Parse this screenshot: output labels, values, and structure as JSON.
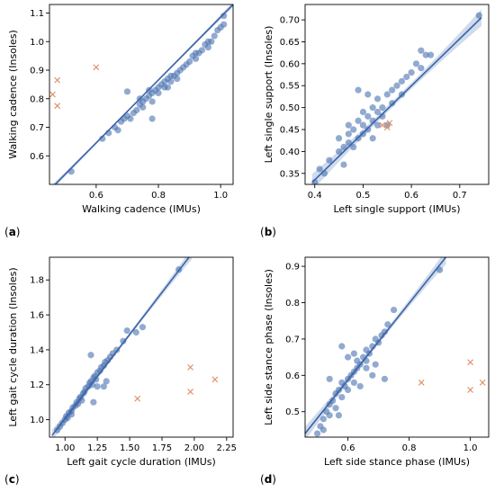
{
  "colors": {
    "points": "#4a71b0",
    "outliers": "#e08a60",
    "fit_line": "#3a64a8",
    "confidence_band": "#a9bddd"
  },
  "chart_data": [
    {
      "type": "scatter",
      "panel_label": "(a)",
      "xlabel": "Walking cadence (IMUs)",
      "ylabel": "Walking cadence (Insoles)",
      "xlim": [
        0.45,
        1.04
      ],
      "ylim": [
        0.5,
        1.13
      ],
      "xticks": [
        "0.6",
        "0.8",
        "1.0"
      ],
      "xtick_values": [
        0.6,
        0.8,
        1.0
      ],
      "yticks": [
        "0.6",
        "0.7",
        "0.8",
        "0.9",
        "1.0",
        "1.1"
      ],
      "ytick_values": [
        0.6,
        0.7,
        0.8,
        0.9,
        1.0,
        1.1
      ],
      "grid": false,
      "fit_line": {
        "x": [
          0.45,
          1.04
        ],
        "y": [
          0.48,
          1.13
        ]
      },
      "band_halfwidth": 0.006,
      "points": [
        [
          0.52,
          0.545
        ],
        [
          0.62,
          0.66
        ],
        [
          0.64,
          0.68
        ],
        [
          0.66,
          0.7
        ],
        [
          0.67,
          0.69
        ],
        [
          0.68,
          0.72
        ],
        [
          0.69,
          0.73
        ],
        [
          0.7,
          0.74
        ],
        [
          0.71,
          0.73
        ],
        [
          0.72,
          0.75
        ],
        [
          0.73,
          0.76
        ],
        [
          0.74,
          0.78
        ],
        [
          0.74,
          0.8
        ],
        [
          0.75,
          0.79
        ],
        [
          0.76,
          0.8
        ],
        [
          0.77,
          0.81
        ],
        [
          0.77,
          0.83
        ],
        [
          0.78,
          0.82
        ],
        [
          0.78,
          0.79
        ],
        [
          0.79,
          0.83
        ],
        [
          0.8,
          0.84
        ],
        [
          0.8,
          0.82
        ],
        [
          0.81,
          0.85
        ],
        [
          0.82,
          0.86
        ],
        [
          0.82,
          0.84
        ],
        [
          0.83,
          0.87
        ],
        [
          0.84,
          0.86
        ],
        [
          0.84,
          0.88
        ],
        [
          0.85,
          0.88
        ],
        [
          0.86,
          0.89
        ],
        [
          0.86,
          0.87
        ],
        [
          0.87,
          0.9
        ],
        [
          0.88,
          0.91
        ],
        [
          0.89,
          0.92
        ],
        [
          0.9,
          0.93
        ],
        [
          0.91,
          0.95
        ],
        [
          0.92,
          0.94
        ],
        [
          0.93,
          0.96
        ],
        [
          0.94,
          0.97
        ],
        [
          0.95,
          0.99
        ],
        [
          0.96,
          1.0
        ],
        [
          0.97,
          1.0
        ],
        [
          0.98,
          1.02
        ],
        [
          0.99,
          1.04
        ],
        [
          1.0,
          1.05
        ],
        [
          1.01,
          1.06
        ],
        [
          1.01,
          1.09
        ],
        [
          0.7,
          0.825
        ],
        [
          0.78,
          0.73
        ],
        [
          0.75,
          0.77
        ],
        [
          0.83,
          0.84
        ],
        [
          0.92,
          0.96
        ],
        [
          0.96,
          0.98
        ]
      ],
      "outliers": [
        [
          0.46,
          0.815
        ],
        [
          0.475,
          0.865
        ],
        [
          0.475,
          0.775
        ],
        [
          0.6,
          0.91
        ]
      ]
    },
    {
      "type": "scatter",
      "panel_label": "(b)",
      "xlabel": "Left single support (IMUs)",
      "ylabel": "Left single support (Insoles)",
      "xlim": [
        0.38,
        0.76
      ],
      "ylim": [
        0.325,
        0.735
      ],
      "xticks": [
        "0.4",
        "0.5",
        "0.6",
        "0.7"
      ],
      "xtick_values": [
        0.4,
        0.5,
        0.6,
        0.7
      ],
      "yticks": [
        "0.35",
        "0.40",
        "0.45",
        "0.50",
        "0.55",
        "0.60",
        "0.65",
        "0.70"
      ],
      "ytick_values": [
        0.35,
        0.4,
        0.45,
        0.5,
        0.55,
        0.6,
        0.65,
        0.7
      ],
      "grid": false,
      "fit_line": {
        "x": [
          0.395,
          0.745
        ],
        "y": [
          0.33,
          0.705
        ]
      },
      "band_halfwidth": 0.012,
      "points": [
        [
          0.4,
          0.33
        ],
        [
          0.41,
          0.36
        ],
        [
          0.42,
          0.35
        ],
        [
          0.43,
          0.38
        ],
        [
          0.45,
          0.4
        ],
        [
          0.46,
          0.41
        ],
        [
          0.46,
          0.37
        ],
        [
          0.47,
          0.42
        ],
        [
          0.47,
          0.44
        ],
        [
          0.48,
          0.41
        ],
        [
          0.48,
          0.45
        ],
        [
          0.49,
          0.43
        ],
        [
          0.49,
          0.47
        ],
        [
          0.5,
          0.46
        ],
        [
          0.5,
          0.44
        ],
        [
          0.5,
          0.49
        ],
        [
          0.51,
          0.48
        ],
        [
          0.51,
          0.45
        ],
        [
          0.52,
          0.47
        ],
        [
          0.52,
          0.5
        ],
        [
          0.52,
          0.43
        ],
        [
          0.53,
          0.49
        ],
        [
          0.53,
          0.52
        ],
        [
          0.54,
          0.5
        ],
        [
          0.54,
          0.48
        ],
        [
          0.55,
          0.53
        ],
        [
          0.55,
          0.46
        ],
        [
          0.56,
          0.54
        ],
        [
          0.56,
          0.51
        ],
        [
          0.57,
          0.55
        ],
        [
          0.58,
          0.56
        ],
        [
          0.58,
          0.53
        ],
        [
          0.59,
          0.57
        ],
        [
          0.6,
          0.58
        ],
        [
          0.61,
          0.6
        ],
        [
          0.62,
          0.59
        ],
        [
          0.62,
          0.63
        ],
        [
          0.63,
          0.62
        ],
        [
          0.64,
          0.62
        ],
        [
          0.74,
          0.71
        ],
        [
          0.49,
          0.54
        ],
        [
          0.47,
          0.46
        ],
        [
          0.45,
          0.43
        ],
        [
          0.53,
          0.46
        ],
        [
          0.51,
          0.53
        ]
      ],
      "outliers": [
        [
          0.54,
          0.46
        ],
        [
          0.55,
          0.455
        ],
        [
          0.555,
          0.465
        ]
      ]
    },
    {
      "type": "scatter",
      "panel_label": "(c)",
      "xlabel": "Left gait cycle duration (IMUs)",
      "ylabel": "Left gait cycle duration (Insoles)",
      "xlim": [
        0.88,
        2.3
      ],
      "ylim": [
        0.9,
        1.93
      ],
      "xticks": [
        "1.00",
        "1.25",
        "1.50",
        "1.75",
        "2.00",
        "2.25"
      ],
      "xtick_values": [
        1.0,
        1.25,
        1.5,
        1.75,
        2.0,
        2.25
      ],
      "yticks": [
        "1.0",
        "1.2",
        "1.4",
        "1.6",
        "1.8"
      ],
      "ytick_values": [
        1.0,
        1.2,
        1.4,
        1.6,
        1.8
      ],
      "grid": false,
      "fit_line": {
        "x": [
          0.9,
          1.98
        ],
        "y": [
          0.91,
          1.95
        ]
      },
      "band_halfwidth": 0.02,
      "points": [
        [
          0.94,
          0.94
        ],
        [
          0.96,
          0.96
        ],
        [
          0.98,
          0.98
        ],
        [
          1.0,
          1.0
        ],
        [
          1.01,
          1.02
        ],
        [
          1.02,
          1.01
        ],
        [
          1.03,
          1.04
        ],
        [
          1.05,
          1.05
        ],
        [
          1.06,
          1.07
        ],
        [
          1.08,
          1.08
        ],
        [
          1.09,
          1.1
        ],
        [
          1.1,
          1.09
        ],
        [
          1.11,
          1.12
        ],
        [
          1.12,
          1.13
        ],
        [
          1.13,
          1.11
        ],
        [
          1.14,
          1.15
        ],
        [
          1.15,
          1.16
        ],
        [
          1.16,
          1.18
        ],
        [
          1.18,
          1.19
        ],
        [
          1.19,
          1.21
        ],
        [
          1.2,
          1.22
        ],
        [
          1.21,
          1.2
        ],
        [
          1.22,
          1.24
        ],
        [
          1.23,
          1.25
        ],
        [
          1.24,
          1.23
        ],
        [
          1.25,
          1.27
        ],
        [
          1.27,
          1.28
        ],
        [
          1.28,
          1.3
        ],
        [
          1.3,
          1.31
        ],
        [
          1.31,
          1.33
        ],
        [
          1.33,
          1.34
        ],
        [
          1.35,
          1.36
        ],
        [
          1.37,
          1.38
        ],
        [
          1.4,
          1.4
        ],
        [
          1.45,
          1.45
        ],
        [
          1.48,
          1.51
        ],
        [
          1.55,
          1.5
        ],
        [
          1.6,
          1.53
        ],
        [
          1.2,
          1.37
        ],
        [
          1.22,
          1.1
        ],
        [
          1.25,
          1.19
        ],
        [
          1.3,
          1.19
        ],
        [
          1.32,
          1.22
        ],
        [
          1.88,
          1.86
        ],
        [
          1.05,
          1.03
        ]
      ],
      "outliers": [
        [
          1.56,
          1.12
        ],
        [
          1.97,
          1.3
        ],
        [
          1.97,
          1.16
        ],
        [
          2.16,
          1.23
        ]
      ]
    },
    {
      "type": "scatter",
      "panel_label": "(d)",
      "xlabel": "Left side stance phase (IMUs)",
      "ylabel": "Left side stance phase (Insoles)",
      "xlim": [
        0.46,
        1.06
      ],
      "ylim": [
        0.43,
        0.925
      ],
      "xticks": [
        "0.6",
        "0.8",
        "1.0"
      ],
      "xtick_values": [
        0.6,
        0.8,
        1.0
      ],
      "yticks": [
        "0.5",
        "0.6",
        "0.7",
        "0.8",
        "0.9"
      ],
      "ytick_values": [
        0.5,
        0.6,
        0.7,
        0.8,
        0.9
      ],
      "grid": false,
      "fit_line": {
        "x": [
          0.46,
          0.92
        ],
        "y": [
          0.44,
          0.925
        ]
      },
      "band_halfwidth": 0.012,
      "points": [
        [
          0.5,
          0.44
        ],
        [
          0.51,
          0.46
        ],
        [
          0.52,
          0.45
        ],
        [
          0.52,
          0.48
        ],
        [
          0.53,
          0.5
        ],
        [
          0.54,
          0.49
        ],
        [
          0.54,
          0.52
        ],
        [
          0.55,
          0.53
        ],
        [
          0.56,
          0.51
        ],
        [
          0.56,
          0.55
        ],
        [
          0.57,
          0.56
        ],
        [
          0.58,
          0.54
        ],
        [
          0.58,
          0.58
        ],
        [
          0.59,
          0.57
        ],
        [
          0.6,
          0.59
        ],
        [
          0.6,
          0.56
        ],
        [
          0.61,
          0.6
        ],
        [
          0.62,
          0.61
        ],
        [
          0.62,
          0.58
        ],
        [
          0.63,
          0.62
        ],
        [
          0.63,
          0.64
        ],
        [
          0.64,
          0.63
        ],
        [
          0.65,
          0.65
        ],
        [
          0.66,
          0.64
        ],
        [
          0.66,
          0.67
        ],
        [
          0.67,
          0.66
        ],
        [
          0.68,
          0.68
        ],
        [
          0.69,
          0.7
        ],
        [
          0.7,
          0.69
        ],
        [
          0.71,
          0.71
        ],
        [
          0.72,
          0.72
        ],
        [
          0.73,
          0.74
        ],
        [
          0.58,
          0.68
        ],
        [
          0.54,
          0.59
        ],
        [
          0.68,
          0.6
        ],
        [
          0.6,
          0.65
        ],
        [
          0.64,
          0.57
        ],
        [
          0.72,
          0.59
        ],
        [
          0.75,
          0.78
        ],
        [
          0.9,
          0.89
        ],
        [
          0.62,
          0.66
        ],
        [
          0.66,
          0.62
        ],
        [
          0.57,
          0.49
        ],
        [
          0.69,
          0.63
        ]
      ],
      "outliers": [
        [
          0.84,
          0.58
        ],
        [
          1.0,
          0.636
        ],
        [
          1.0,
          0.56
        ],
        [
          1.04,
          0.58
        ]
      ]
    }
  ]
}
